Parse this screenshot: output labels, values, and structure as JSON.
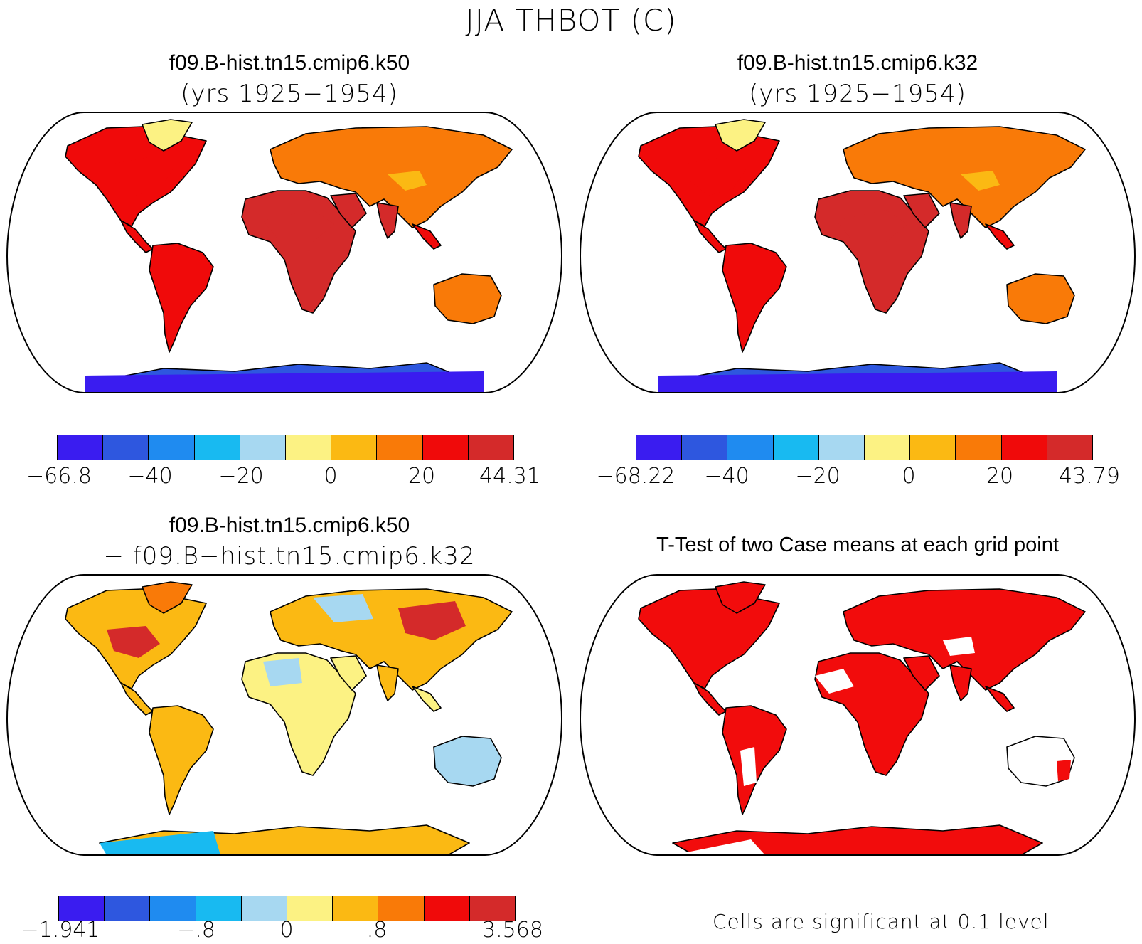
{
  "figure": {
    "title": "JJA THBOT (C)"
  },
  "panels": {
    "top_left": {
      "title": "f09.B-hist.tn15.cmip6.k50",
      "subtitle": "(yrs 1925−1954)"
    },
    "top_right": {
      "title": "f09.B-hist.tn15.cmip6.k32",
      "subtitle": "(yrs 1925−1954)"
    },
    "bottom_left": {
      "title": "f09.B-hist.tn15.cmip6.k50",
      "subtitle": "− f09.B−hist.tn15.cmip6.k32"
    },
    "bottom_right": {
      "title": "T-Test of two Case means at each grid point",
      "note": "Cells are significant at 0.1 level"
    }
  },
  "colorbars": {
    "colors": [
      "#3a1cf0",
      "#2e57df",
      "#1f8bf0",
      "#18baf1",
      "#a7d8f1",
      "#fcf283",
      "#fbb913",
      "#f97a08",
      "#f00a0a",
      "#d42a2a"
    ],
    "top_left": {
      "labels": [
        "−66.8",
        "−40",
        "−20",
        "0",
        "20",
        "44.31"
      ]
    },
    "top_right": {
      "labels": [
        "−68.22",
        "−40",
        "−20",
        "0",
        "20",
        "43.79"
      ]
    },
    "bottom_left": {
      "labels": [
        "−1.941",
        "−.8",
        "0",
        ".8",
        "3.568"
      ]
    }
  },
  "colors": {
    "significant": "#f20c0c",
    "outline": "#000000"
  }
}
